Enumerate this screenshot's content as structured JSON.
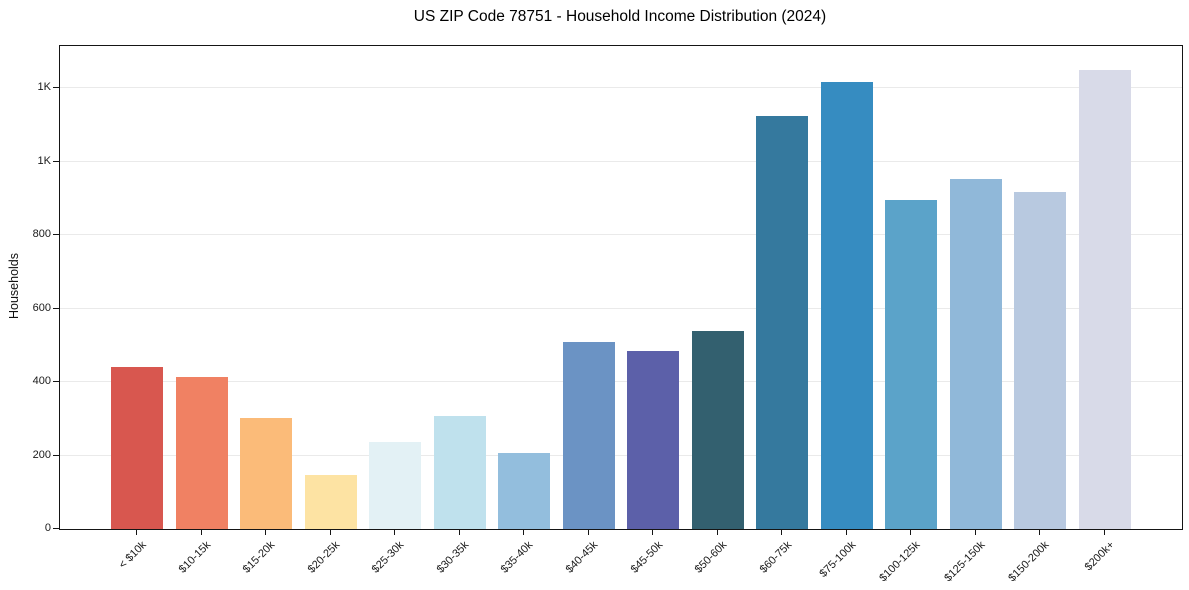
{
  "chart_data": {
    "type": "bar",
    "title": "US ZIP Code 78751 - Household Income Distribution (2024)",
    "xlabel": "",
    "ylabel": "Households",
    "categories": [
      "< $10k",
      "$10-15k",
      "$15-20k",
      "$20-25k",
      "$25-30k",
      "$30-35k",
      "$35-40k",
      "$40-45k",
      "$45-50k",
      "$50-60k",
      "$60-75k",
      "$75-100k",
      "$100-125k",
      "$125-150k",
      "$150-200k",
      "$200k+"
    ],
    "values": [
      440,
      413,
      301,
      148,
      236,
      307,
      206,
      509,
      484,
      539,
      1125,
      1217,
      895,
      952,
      917,
      1251
    ],
    "bar_colors": [
      "#d8574f",
      "#f08163",
      "#fbbb79",
      "#fde3a3",
      "#e3f1f5",
      "#bfe1ed",
      "#93bedd",
      "#6b93c4",
      "#5c60a9",
      "#33606f",
      "#35799e",
      "#368cc1",
      "#5ba3c9",
      "#90b8d9",
      "#b8c9e0",
      "#d8dae8"
    ],
    "ylim": [
      0,
      1315
    ],
    "yticks": [
      {
        "value": 0,
        "label": "0"
      },
      {
        "value": 200,
        "label": "200"
      },
      {
        "value": 400,
        "label": "400"
      },
      {
        "value": 600,
        "label": "600"
      },
      {
        "value": 800,
        "label": "800"
      },
      {
        "value": 1000,
        "label": "1K"
      },
      {
        "value": 1200,
        "label": "1K"
      }
    ],
    "grid": "horizontal",
    "gridline_color": "#eaeaea",
    "spine_color": "#151515",
    "background": "#ffffff",
    "legend": "none"
  }
}
